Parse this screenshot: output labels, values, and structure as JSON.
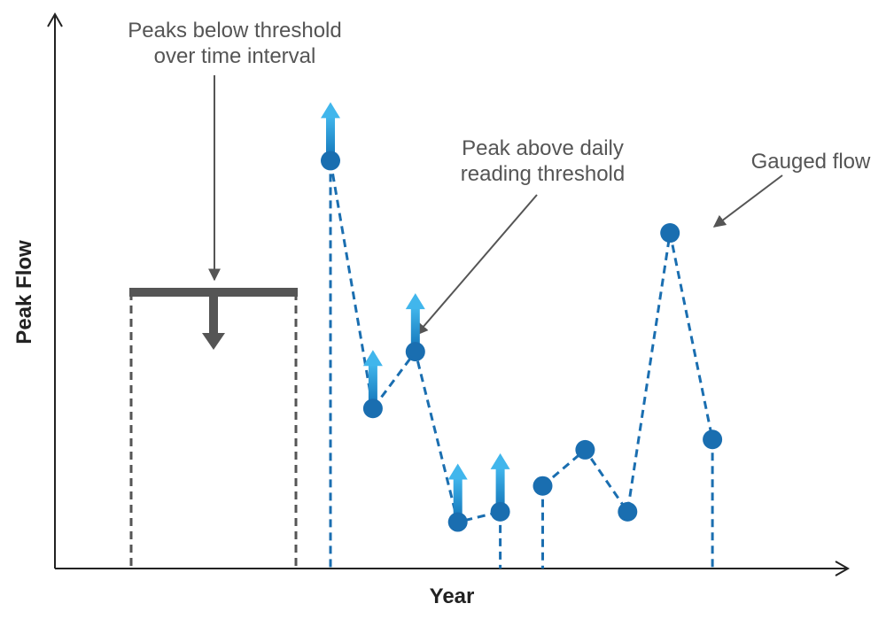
{
  "colors": {
    "axis": "#222222",
    "gauged": "#1a6eb0",
    "arrow_blue_top": "#41b6ec",
    "arrow_blue_bottom": "#0f6fb4",
    "threshold": "#555555",
    "annotation": "#555555"
  },
  "axes": {
    "x_label": "Year",
    "y_label": "Peak Flow"
  },
  "annotations": {
    "threshold_line1": "Peaks below threshold",
    "threshold_line2": "over time interval",
    "daily_line1": "Peak above daily",
    "daily_line2": "reading threshold",
    "gauged": "Gauged flow"
  },
  "chart_data": {
    "type": "scatter",
    "xlabel": "Year",
    "ylabel": "Peak Flow",
    "segments": [
      {
        "name": "gauged-segment-1",
        "points": [
          {
            "x": 1,
            "y": 79,
            "above_threshold": true
          },
          {
            "x": 2,
            "y": 31,
            "above_threshold": true
          },
          {
            "x": 3,
            "y": 42,
            "above_threshold": true
          },
          {
            "x": 4,
            "y": 9,
            "above_threshold": true
          },
          {
            "x": 5,
            "y": 11,
            "above_threshold": true
          }
        ]
      },
      {
        "name": "gauged-segment-2",
        "points": [
          {
            "x": 6,
            "y": 16,
            "above_threshold": false
          },
          {
            "x": 7,
            "y": 23,
            "above_threshold": false
          },
          {
            "x": 8,
            "y": 11,
            "above_threshold": false
          },
          {
            "x": 9,
            "y": 65,
            "above_threshold": false
          },
          {
            "x": 10,
            "y": 25,
            "above_threshold": false
          }
        ]
      }
    ],
    "threshold_interval": {
      "x_start": -1.4,
      "x_end": 0.6,
      "y": 54
    },
    "drop_lines_at": [
      1,
      5,
      6,
      10
    ]
  }
}
